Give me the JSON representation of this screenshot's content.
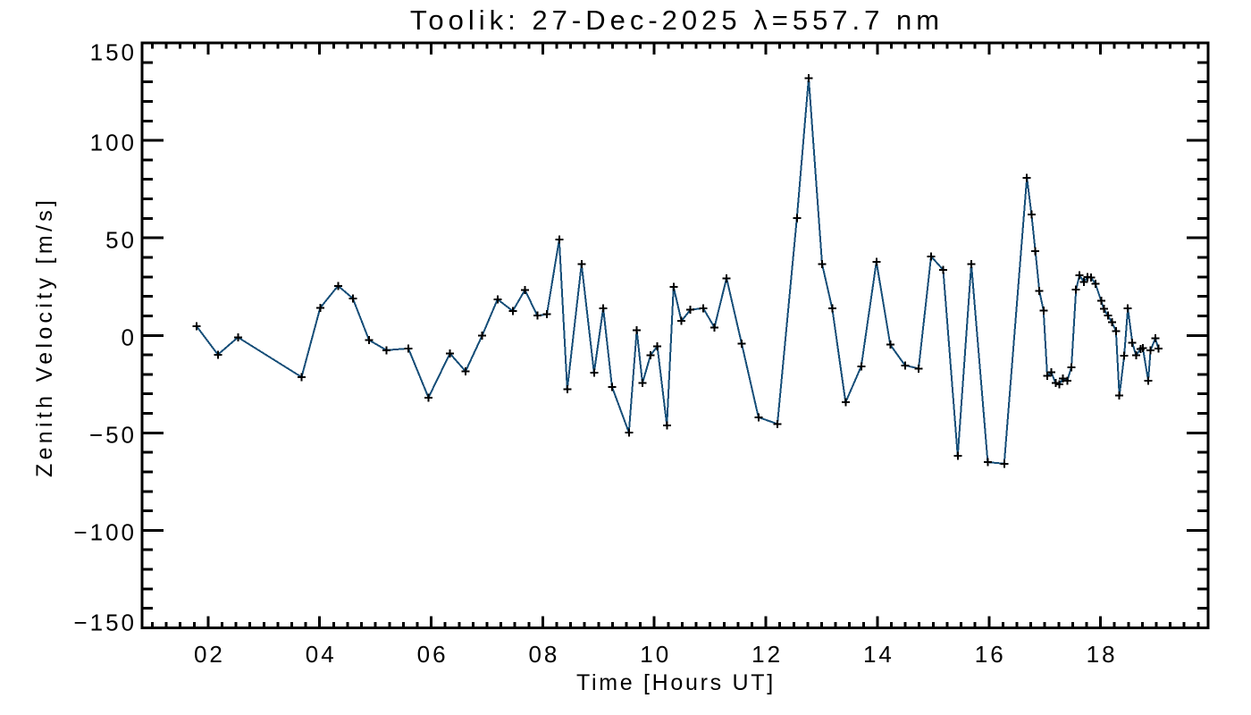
{
  "chart_data": {
    "type": "line",
    "title": "Toolik: 27-Dec-2025 λ=557.7 nm",
    "xlabel": "Time [Hours UT]",
    "ylabel": "Zenith Velocity [m/s]",
    "xlim": [
      0.816,
      19.929
    ],
    "ylim": [
      -150,
      150
    ],
    "x_major_ticks": [
      2,
      4,
      6,
      8,
      10,
      12,
      14,
      16,
      18
    ],
    "x_tick_labels": [
      "02",
      "04",
      "06",
      "08",
      "10",
      "12",
      "14",
      "16",
      "18"
    ],
    "x_minor_interval": 0.25,
    "y_major_ticks": [
      -150,
      -100,
      -50,
      0,
      50,
      100,
      150
    ],
    "y_tick_labels": [
      "−150",
      "−100",
      "−50",
      "0",
      "50",
      "100",
      "150"
    ],
    "y_minor_interval": 10,
    "grid": false,
    "legend": null,
    "marker": "plus",
    "marker_color": "#000000",
    "line_color": "#154e78",
    "frame_color": "#000000",
    "background_color": "#ffffff",
    "series": [
      {
        "name": "zenith velocity",
        "x": [
          1.793,
          2.175,
          2.535,
          3.676,
          4.009,
          4.329,
          4.594,
          4.885,
          5.198,
          5.59,
          5.951,
          6.335,
          6.616,
          6.912,
          7.189,
          7.461,
          7.681,
          7.902,
          8.073,
          8.294,
          8.439,
          8.695,
          8.919,
          9.084,
          9.241,
          9.544,
          9.685,
          9.788,
          9.93,
          10.054,
          10.225,
          10.345,
          10.486,
          10.648,
          10.877,
          11.077,
          11.295,
          11.566,
          11.867,
          12.207,
          12.556,
          12.767,
          13.008,
          13.189,
          13.429,
          13.709,
          13.982,
          14.23,
          14.494,
          14.738,
          14.962,
          15.178,
          15.44,
          15.683,
          15.979,
          16.273,
          16.68,
          16.763,
          16.832,
          16.905,
          16.978,
          17.046,
          17.115,
          17.195,
          17.258,
          17.325,
          17.402,
          17.477,
          17.561,
          17.623,
          17.702,
          17.766,
          17.83,
          17.91,
          18.012,
          18.059,
          18.133,
          18.203,
          18.278,
          18.338,
          18.424,
          18.49,
          18.57,
          18.636,
          18.721,
          18.759,
          18.855,
          18.898,
          18.982,
          19.039
        ],
        "y": [
          4.7,
          -9.9,
          -1.0,
          -21.4,
          14.1,
          25.4,
          19.0,
          -2.4,
          -7.6,
          -6.7,
          -31.9,
          -9.3,
          -18.4,
          -0.2,
          18.5,
          12.5,
          23.3,
          10.1,
          10.8,
          49.1,
          -27.6,
          36.5,
          -19.1,
          13.9,
          -26.4,
          -49.8,
          2.6,
          -24.5,
          -10.3,
          -5.6,
          -46.1,
          24.8,
          7.4,
          13.2,
          13.9,
          4.1,
          29.3,
          -4.2,
          -42.0,
          -45.4,
          60.1,
          132.0,
          36.6,
          13.9,
          -34.3,
          -15.9,
          37.7,
          -4.8,
          -15.4,
          -17.0,
          40.5,
          33.6,
          -61.8,
          36.5,
          -65.0,
          -65.8,
          80.9,
          61.9,
          43.1,
          22.7,
          12.8,
          -20.8,
          -18.8,
          -24.5,
          -25.2,
          -22.2,
          -23.3,
          -16.4,
          23.5,
          30.8,
          27.5,
          29.8,
          29.6,
          26.4,
          17.7,
          13.6,
          10.1,
          6.8,
          2.2,
          -30.9,
          -10.5,
          13.8,
          -3.7,
          -10.2,
          -7.0,
          -6.6,
          -23.3,
          -7.6,
          -1.6,
          -6.7
        ]
      }
    ]
  }
}
